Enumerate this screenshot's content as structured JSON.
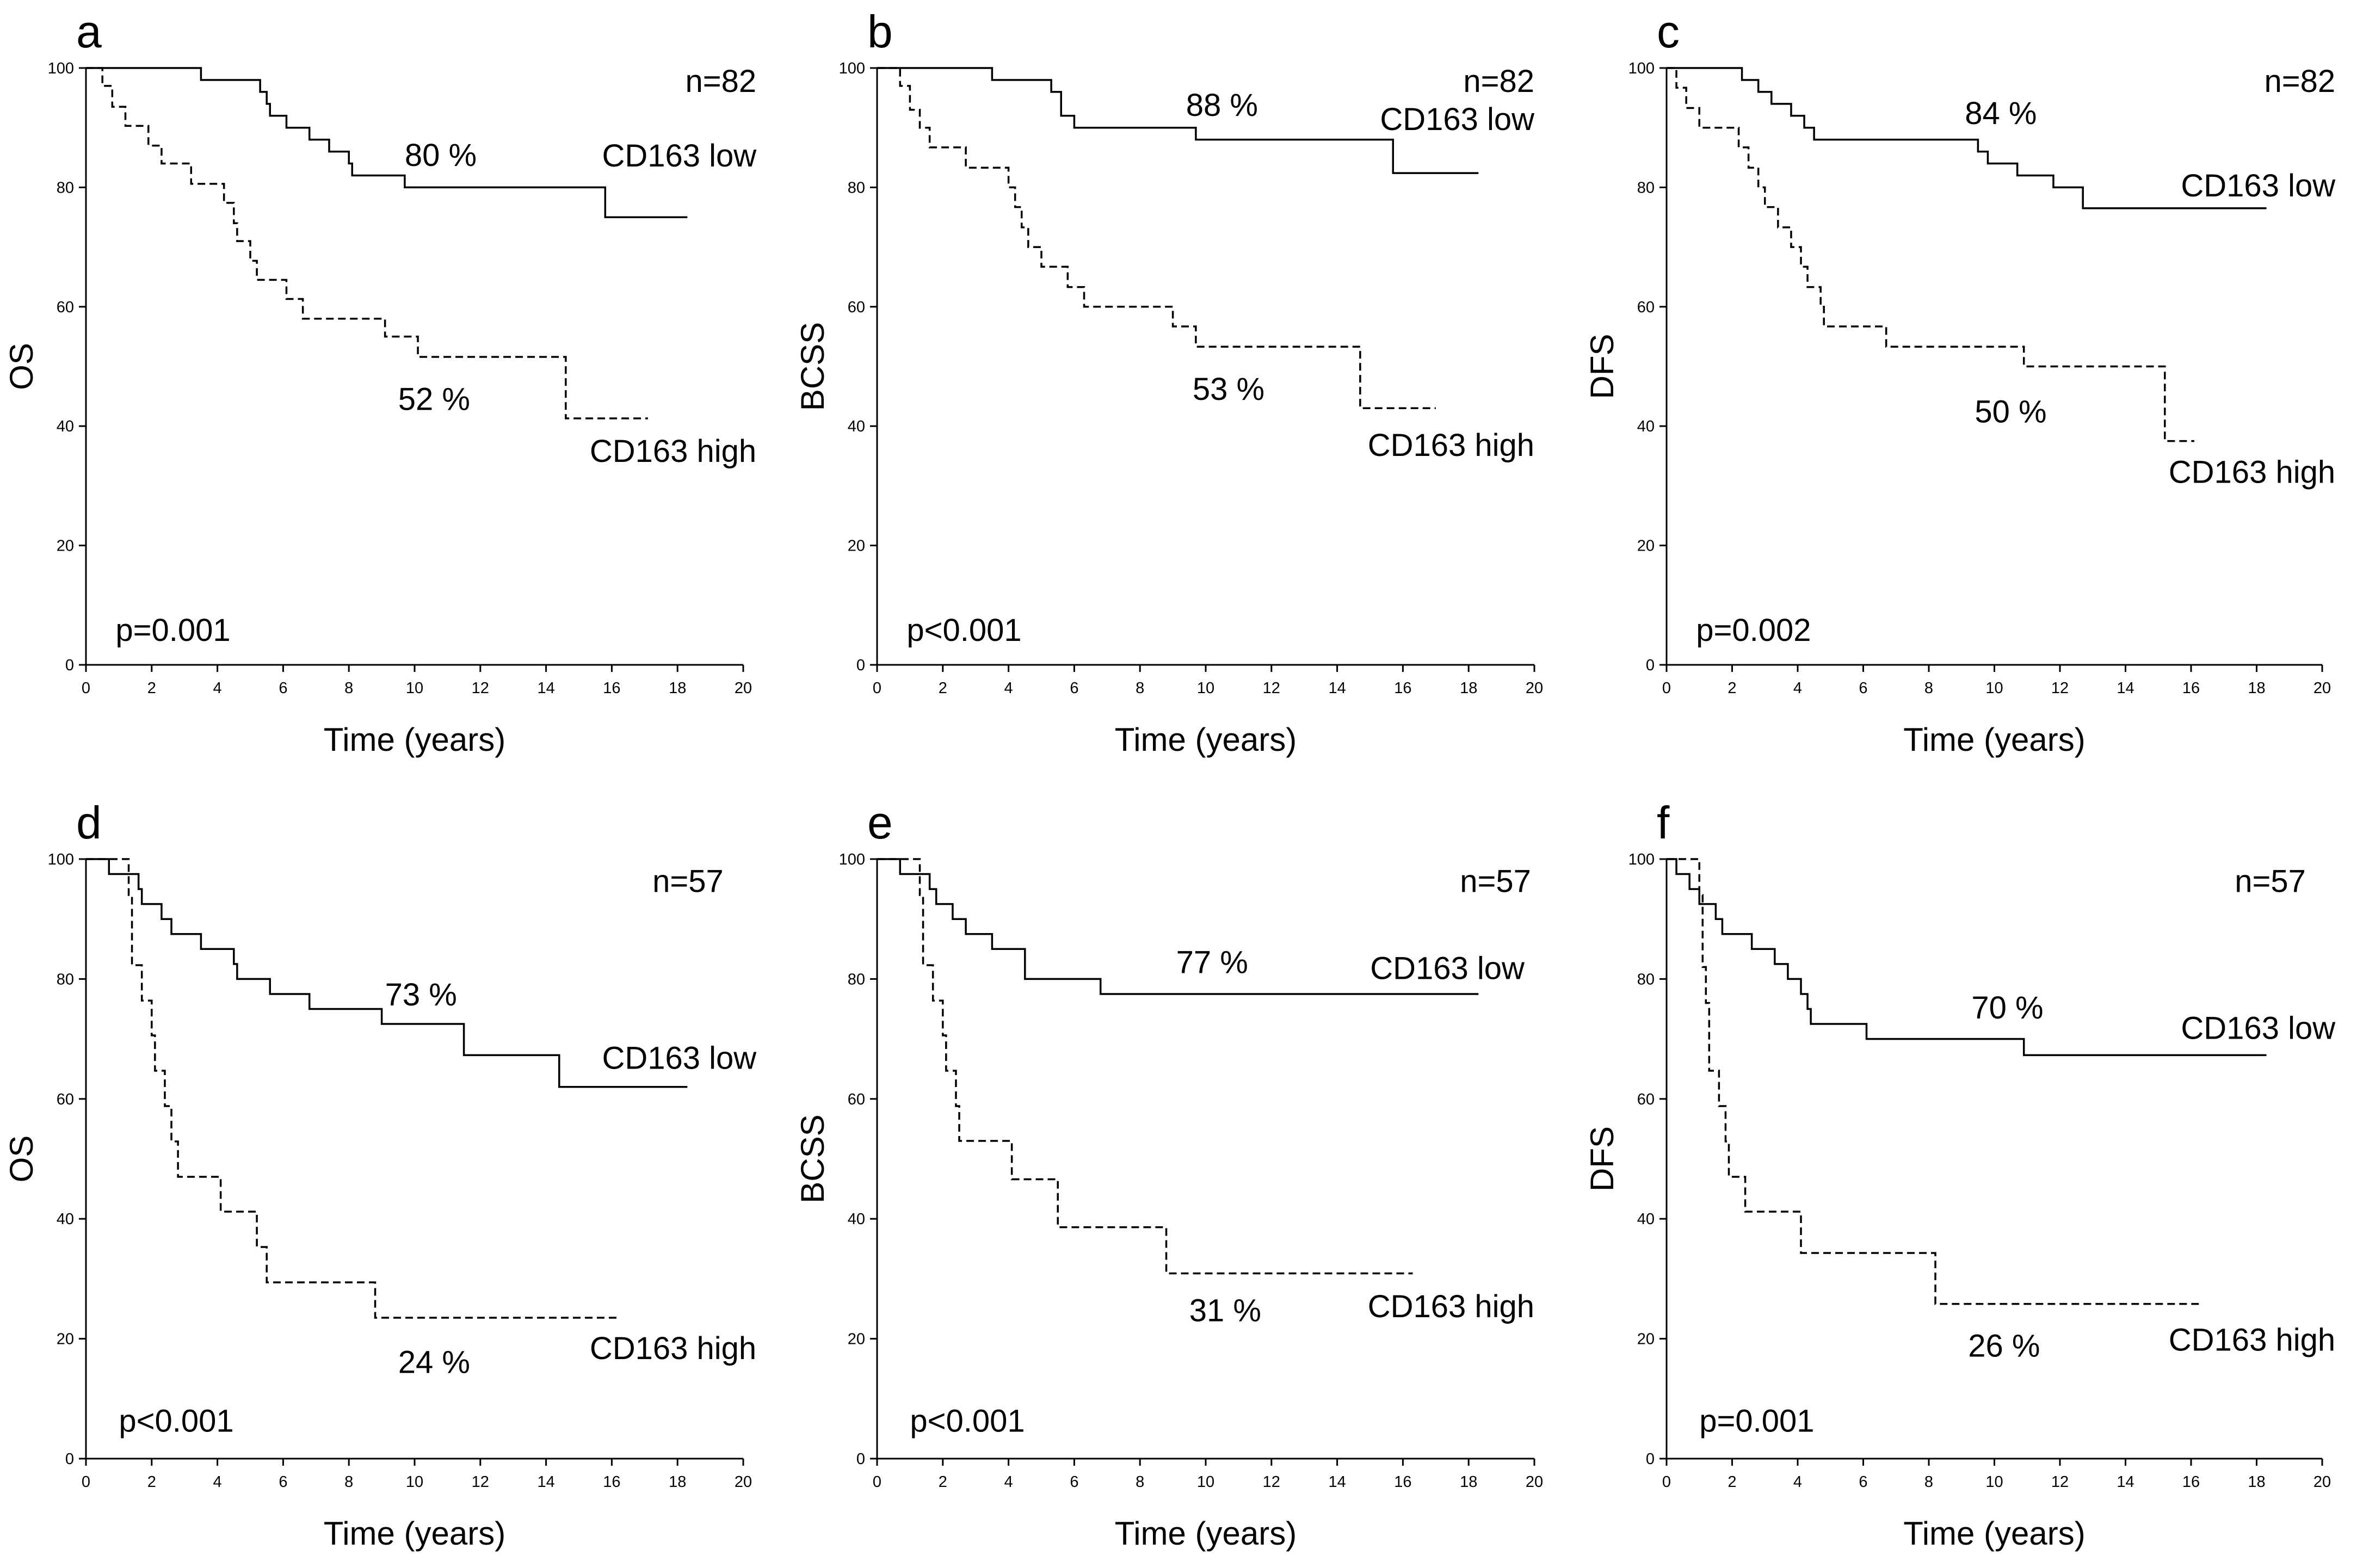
{
  "chart_data": [
    {
      "type": "line",
      "panel": "a",
      "ylabel": "OS",
      "xlabel": "Time (years)",
      "n_label": "n=82",
      "p_label": "p=0.001",
      "xlim": [
        0,
        20
      ],
      "ylim": [
        0,
        100
      ],
      "xticks": [
        "0",
        "2",
        "4",
        "6",
        "8",
        "10",
        "12",
        "14",
        "16",
        "18",
        "20"
      ],
      "yticks": [
        "0",
        "20",
        "40",
        "60",
        "80",
        "100"
      ],
      "series": [
        {
          "name": "CD163 low",
          "style": "solid",
          "pct_label": "80 %",
          "end": 18.3,
          "steps": [
            [
              0,
              100
            ],
            [
              3.5,
              98
            ],
            [
              5.3,
              96
            ],
            [
              5.5,
              94
            ],
            [
              5.6,
              92
            ],
            [
              6.1,
              90
            ],
            [
              6.8,
              88
            ],
            [
              7.4,
              86
            ],
            [
              8,
              84
            ],
            [
              8.1,
              82
            ],
            [
              9.7,
              80
            ],
            [
              15.8,
              75
            ]
          ]
        },
        {
          "name": "CD163 high",
          "style": "dashed",
          "pct_label": "52 %",
          "end": 17.1,
          "steps": [
            [
              0,
              100
            ],
            [
              0.5,
              97
            ],
            [
              0.8,
              93.5
            ],
            [
              1.2,
              90.3
            ],
            [
              1.9,
              87
            ],
            [
              2.3,
              84
            ],
            [
              3.2,
              80.6
            ],
            [
              4.2,
              77.4
            ],
            [
              4.5,
              74
            ],
            [
              4.6,
              71
            ],
            [
              5,
              67.7
            ],
            [
              5.2,
              64.5
            ],
            [
              6.1,
              61.3
            ],
            [
              6.6,
              58
            ],
            [
              9.1,
              55
            ],
            [
              10.1,
              51.6
            ],
            [
              14.6,
              41.3
            ]
          ]
        }
      ]
    },
    {
      "type": "line",
      "panel": "b",
      "ylabel": "BCSS",
      "xlabel": "Time (years)",
      "n_label": "n=82",
      "p_label": "p<0.001",
      "xlim": [
        0,
        20
      ],
      "ylim": [
        0,
        100
      ],
      "xticks": [
        "0",
        "2",
        "4",
        "6",
        "8",
        "10",
        "12",
        "14",
        "16",
        "18",
        "20"
      ],
      "yticks": [
        "0",
        "20",
        "40",
        "60",
        "80",
        "100"
      ],
      "series": [
        {
          "name": "CD163 low",
          "style": "solid",
          "pct_label": "88 %",
          "end": 18.3,
          "steps": [
            [
              0,
              100
            ],
            [
              3.5,
              98
            ],
            [
              5.3,
              96
            ],
            [
              5.6,
              92
            ],
            [
              6,
              90
            ],
            [
              9.7,
              88
            ],
            [
              15.7,
              82.4
            ]
          ]
        },
        {
          "name": "CD163 high",
          "style": "dashed",
          "pct_label": "53 %",
          "end": 17,
          "steps": [
            [
              0,
              100
            ],
            [
              0.7,
              97
            ],
            [
              1,
              93
            ],
            [
              1.3,
              90
            ],
            [
              1.6,
              86.7
            ],
            [
              2.7,
              83.3
            ],
            [
              4,
              80
            ],
            [
              4.2,
              76.7
            ],
            [
              4.4,
              73.3
            ],
            [
              4.6,
              70
            ],
            [
              5,
              66.7
            ],
            [
              5.8,
              63.3
            ],
            [
              6.3,
              60
            ],
            [
              9,
              56.7
            ],
            [
              9.7,
              53.3
            ],
            [
              14.7,
              43
            ]
          ]
        }
      ]
    },
    {
      "type": "line",
      "panel": "c",
      "ylabel": "DFS",
      "xlabel": "Time (years)",
      "n_label": "n=82",
      "p_label": "p=0.002",
      "xlim": [
        0,
        20
      ],
      "ylim": [
        0,
        100
      ],
      "xticks": [
        "0",
        "2",
        "4",
        "6",
        "8",
        "10",
        "12",
        "14",
        "16",
        "18",
        "20"
      ],
      "yticks": [
        "0",
        "20",
        "40",
        "60",
        "80",
        "100"
      ],
      "series": [
        {
          "name": "CD163 low",
          "style": "solid",
          "pct_label": "84 %",
          "end": 18.3,
          "steps": [
            [
              0,
              100
            ],
            [
              2.3,
              98
            ],
            [
              2.8,
              96
            ],
            [
              3.2,
              94
            ],
            [
              3.8,
              92
            ],
            [
              4.2,
              90
            ],
            [
              4.5,
              88
            ],
            [
              9.5,
              86
            ],
            [
              9.8,
              84
            ],
            [
              10.7,
              82
            ],
            [
              11.8,
              80
            ],
            [
              12.7,
              76.5
            ]
          ]
        },
        {
          "name": "CD163 high",
          "style": "dashed",
          "pct_label": "50 %",
          "end": 16.1,
          "steps": [
            [
              0,
              100
            ],
            [
              0.3,
              96.7
            ],
            [
              0.6,
              93.3
            ],
            [
              1,
              90
            ],
            [
              2.2,
              86.7
            ],
            [
              2.5,
              83.3
            ],
            [
              2.8,
              80
            ],
            [
              3,
              76.7
            ],
            [
              3.4,
              73.3
            ],
            [
              3.8,
              70
            ],
            [
              4.1,
              66.7
            ],
            [
              4.3,
              63.3
            ],
            [
              4.7,
              60
            ],
            [
              4.8,
              56.7
            ],
            [
              6.7,
              53.3
            ],
            [
              10.9,
              50
            ],
            [
              15.2,
              37.5
            ]
          ]
        }
      ]
    },
    {
      "type": "line",
      "panel": "d",
      "ylabel": "OS",
      "xlabel": "Time (years)",
      "n_label": "n=57",
      "p_label": "p<0.001",
      "xlim": [
        0,
        20
      ],
      "ylim": [
        0,
        100
      ],
      "xticks": [
        "0",
        "2",
        "4",
        "6",
        "8",
        "10",
        "12",
        "14",
        "16",
        "18",
        "20"
      ],
      "yticks": [
        "0",
        "20",
        "40",
        "60",
        "80",
        "100"
      ],
      "series": [
        {
          "name": "CD163 low",
          "style": "solid",
          "pct_label": "73 %",
          "end": 18.3,
          "steps": [
            [
              0,
              100
            ],
            [
              0.7,
              97.5
            ],
            [
              1.6,
              95
            ],
            [
              1.7,
              92.5
            ],
            [
              2.3,
              90
            ],
            [
              2.6,
              87.5
            ],
            [
              3.5,
              85
            ],
            [
              4.5,
              82.5
            ],
            [
              4.6,
              80
            ],
            [
              5.6,
              77.5
            ],
            [
              6.8,
              75
            ],
            [
              9,
              72.5
            ],
            [
              11.5,
              67.3
            ],
            [
              14.4,
              62
            ]
          ]
        },
        {
          "name": "CD163 high",
          "style": "dashed",
          "pct_label": "24 %",
          "end": 16.2,
          "steps": [
            [
              0,
              100
            ],
            [
              1.3,
              94
            ],
            [
              1.4,
              82.3
            ],
            [
              1.7,
              76.4
            ],
            [
              2,
              70.6
            ],
            [
              2.1,
              64.7
            ],
            [
              2.4,
              58.8
            ],
            [
              2.6,
              52.9
            ],
            [
              2.8,
              47
            ],
            [
              4.1,
              41.2
            ],
            [
              5.2,
              35.3
            ],
            [
              5.5,
              29.4
            ],
            [
              8.8,
              23.5
            ]
          ]
        }
      ]
    },
    {
      "type": "line",
      "panel": "e",
      "ylabel": "BCSS",
      "xlabel": "Time (years)",
      "n_label": "n=57",
      "p_label": "p<0.001",
      "xlim": [
        0,
        20
      ],
      "ylim": [
        0,
        100
      ],
      "xticks": [
        "0",
        "2",
        "4",
        "6",
        "8",
        "10",
        "12",
        "14",
        "16",
        "18",
        "20"
      ],
      "yticks": [
        "0",
        "20",
        "40",
        "60",
        "80",
        "100"
      ],
      "series": [
        {
          "name": "CD163 low",
          "style": "solid",
          "pct_label": "77 %",
          "end": 18.3,
          "steps": [
            [
              0,
              100
            ],
            [
              0.7,
              97.5
            ],
            [
              1.6,
              95
            ],
            [
              1.8,
              92.5
            ],
            [
              2.3,
              90
            ],
            [
              2.7,
              87.5
            ],
            [
              3.5,
              85
            ],
            [
              4.5,
              80
            ],
            [
              6.8,
              77.5
            ]
          ]
        },
        {
          "name": "CD163 high",
          "style": "dashed",
          "pct_label": "31 %",
          "end": 16.3,
          "steps": [
            [
              0,
              100
            ],
            [
              1.3,
              94
            ],
            [
              1.4,
              82.3
            ],
            [
              1.7,
              76.4
            ],
            [
              2,
              70.6
            ],
            [
              2.1,
              64.7
            ],
            [
              2.4,
              58.8
            ],
            [
              2.5,
              53
            ],
            [
              4.1,
              46.6
            ],
            [
              5.5,
              38.6
            ],
            [
              8.8,
              30.9
            ]
          ]
        }
      ]
    },
    {
      "type": "line",
      "panel": "f",
      "ylabel": "DFS",
      "xlabel": "Time (years)",
      "n_label": "n=57",
      "p_label": "p=0.001",
      "xlim": [
        0,
        20
      ],
      "ylim": [
        0,
        100
      ],
      "xticks": [
        "0",
        "2",
        "4",
        "6",
        "8",
        "10",
        "12",
        "14",
        "16",
        "18",
        "20"
      ],
      "yticks": [
        "0",
        "20",
        "40",
        "60",
        "80",
        "100"
      ],
      "series": [
        {
          "name": "CD163 low",
          "style": "solid",
          "pct_label": "70 %",
          "end": 18.3,
          "steps": [
            [
              0,
              100
            ],
            [
              0.3,
              97.5
            ],
            [
              0.7,
              95
            ],
            [
              1,
              92.5
            ],
            [
              1.5,
              90
            ],
            [
              1.7,
              87.5
            ],
            [
              2.6,
              85
            ],
            [
              3.3,
              82.5
            ],
            [
              3.7,
              80
            ],
            [
              4.1,
              77.5
            ],
            [
              4.3,
              75
            ],
            [
              4.4,
              72.5
            ],
            [
              6.1,
              70
            ],
            [
              10.9,
              67.3
            ]
          ]
        },
        {
          "name": "CD163 high",
          "style": "dashed",
          "pct_label": "26 %",
          "end": 16.3,
          "steps": [
            [
              0,
              100
            ],
            [
              1,
              94
            ],
            [
              1.1,
              82
            ],
            [
              1.2,
              76
            ],
            [
              1.3,
              64.7
            ],
            [
              1.6,
              58.8
            ],
            [
              1.8,
              52.9
            ],
            [
              1.9,
              47
            ],
            [
              2.4,
              41.2
            ],
            [
              4.1,
              34.3
            ],
            [
              8.2,
              25.8
            ]
          ]
        }
      ]
    }
  ]
}
